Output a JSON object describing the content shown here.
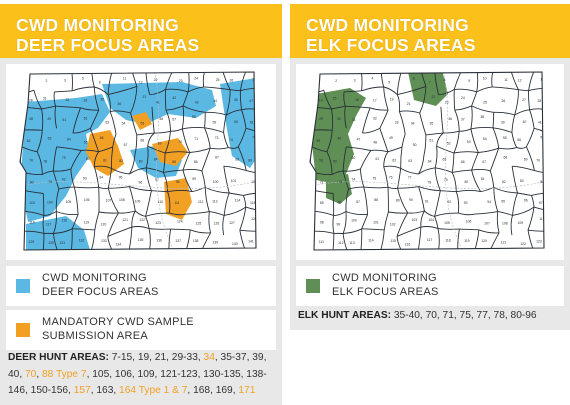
{
  "colors": {
    "header": "#fbc01a",
    "deer_focus": "#5bb8e2",
    "mandatory": "#f2a024",
    "elk_focus": "#5f8f55",
    "panel_bg": "#e8e8e8"
  },
  "deer": {
    "title_line1": "CWD MONITORING",
    "title_line2": "DEER FOCUS AREAS",
    "map_labels": [
      "1",
      "2",
      "3",
      "5",
      "6",
      "11",
      "12",
      "22",
      "23",
      "24",
      "25",
      "26",
      "27",
      "28",
      "31",
      "32",
      "33",
      "35",
      "36",
      "37",
      "41",
      "42",
      "43",
      "44",
      "45",
      "47",
      "48",
      "49",
      "51",
      "52",
      "53",
      "54",
      "55",
      "56",
      "57",
      "58",
      "59",
      "60",
      "61",
      "62",
      "63",
      "64",
      "65",
      "66",
      "67",
      "68",
      "69",
      "70",
      "71",
      "73",
      "74",
      "75",
      "76",
      "78",
      "79",
      "80",
      "81",
      "82",
      "83",
      "84",
      "85",
      "86",
      "87",
      "88",
      "89",
      "90",
      "91",
      "92",
      "93",
      "94",
      "95",
      "96",
      "97",
      "98",
      "99",
      "100",
      "101",
      "102",
      "103",
      "104",
      "105",
      "106",
      "107",
      "108",
      "109",
      "110",
      "111",
      "112",
      "113",
      "114",
      "115",
      "116",
      "117",
      "118",
      "119",
      "120",
      "121",
      "122",
      "123",
      "124",
      "125",
      "126",
      "127",
      "128",
      "129",
      "130",
      "131",
      "132",
      "133",
      "134",
      "135",
      "136",
      "137",
      "138",
      "139",
      "140",
      "141",
      "142",
      "143",
      "144",
      "145",
      "146",
      "147",
      "148",
      "149",
      "150",
      "151",
      "152",
      "153",
      "154",
      "155",
      "156",
      "157",
      "158",
      "159",
      "160",
      "161",
      "162",
      "163",
      "164",
      "165",
      "166",
      "167",
      "168",
      "169",
      "170",
      "171"
    ],
    "legend_focus_line1": "CWD MONITORING",
    "legend_focus_line2": "DEER FOCUS AREAS",
    "legend_mandatory_line1": "MANDATORY CWD SAMPLE",
    "legend_mandatory_line2": "SUBMISSION AREA",
    "hunt_label": "DEER HUNT AREAS:",
    "hunt_areas": [
      {
        "text": " 7-15, 19, 21, 29-33, ",
        "orange": false
      },
      {
        "text": "34",
        "orange": true
      },
      {
        "text": ", 35-37, 39, 40, ",
        "orange": false
      },
      {
        "text": "70",
        "orange": true
      },
      {
        "text": ", ",
        "orange": false
      },
      {
        "text": "88 Type 7",
        "orange": true
      },
      {
        "text": ", 105, 106, 109, 121-123, 130-135, 138-146, 150-156, ",
        "orange": false
      },
      {
        "text": "157",
        "orange": true
      },
      {
        "text": ", 163, ",
        "orange": false
      },
      {
        "text": "164 Type 1 & 7",
        "orange": true
      },
      {
        "text": ", 168, 169, ",
        "orange": false
      },
      {
        "text": "171",
        "orange": true
      }
    ]
  },
  "elk": {
    "title_line1": "CWD MONITORING",
    "title_line2": "ELK FOCUS AREAS",
    "map_labels": [
      "1",
      "2",
      "3",
      "4",
      "5",
      "6",
      "7",
      "8",
      "9",
      "10",
      "11",
      "12",
      "13",
      "14",
      "15",
      "16",
      "17",
      "19",
      "21",
      "22",
      "23",
      "24",
      "25",
      "26",
      "27",
      "28",
      "29",
      "30",
      "31",
      "32",
      "33",
      "34",
      "35",
      "36",
      "37",
      "38",
      "39",
      "40",
      "41",
      "45",
      "46",
      "47",
      "48",
      "49",
      "50",
      "51",
      "52",
      "53",
      "54",
      "55",
      "56",
      "57",
      "58",
      "59",
      "60",
      "61",
      "62",
      "63",
      "64",
      "65",
      "66",
      "67",
      "68",
      "69",
      "70",
      "71",
      "73",
      "74",
      "75",
      "76",
      "77",
      "78",
      "79",
      "80",
      "81",
      "82",
      "83",
      "84",
      "85",
      "86",
      "87",
      "88",
      "89",
      "90",
      "91",
      "92",
      "93",
      "94",
      "95",
      "96",
      "97",
      "98",
      "99",
      "100",
      "101",
      "102",
      "103",
      "104",
      "105",
      "106",
      "107",
      "108",
      "109",
      "110",
      "111",
      "112",
      "113",
      "114",
      "115",
      "116",
      "117",
      "118",
      "119",
      "120",
      "121",
      "122",
      "123",
      "124",
      "125",
      "126",
      "127",
      "128",
      "129",
      "130"
    ],
    "legend_focus_line1": "CWD MONITORING",
    "legend_focus_line2": "ELK FOCUS AREAS",
    "hunt_label": "ELK HUNT AREAS:",
    "hunt_areas": " 35-40, 70, 71, 75, 77, 78, 80-96"
  }
}
